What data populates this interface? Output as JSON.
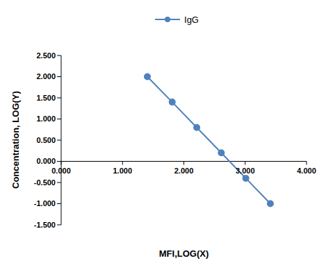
{
  "chart_data": {
    "type": "line",
    "xlabel": "MFI,LOG(X)",
    "ylabel": "Concentration, LOG(Y)",
    "x": [
      1.405,
      1.81,
      2.21,
      2.61,
      3.01,
      3.41
    ],
    "series": [
      {
        "name": "IgG",
        "color": "#4f81bd",
        "marker": "circle",
        "values": [
          2.0,
          1.4,
          0.8,
          0.2,
          -0.4,
          -1.0
        ]
      }
    ],
    "xlim": [
      0,
      4
    ],
    "xticks": [
      {
        "value": 0,
        "label": "0.000"
      },
      {
        "value": 1,
        "label": "1.000"
      },
      {
        "value": 2,
        "label": "2.000"
      },
      {
        "value": 3,
        "label": "3.000"
      },
      {
        "value": 4,
        "label": "4.000"
      }
    ],
    "ylim": [
      -1.5,
      2.5
    ],
    "yticks": [
      {
        "value": -1.5,
        "label": "-1.500"
      },
      {
        "value": -1,
        "label": "-1.000"
      },
      {
        "value": -0.5,
        "label": "-0.500"
      },
      {
        "value": 0,
        "label": "0.000"
      },
      {
        "value": 0.5,
        "label": "0.500"
      },
      {
        "value": 1,
        "label": "1.000"
      },
      {
        "value": 1.5,
        "label": "1.500"
      },
      {
        "value": 2,
        "label": "2.000"
      },
      {
        "value": 2.5,
        "label": "2.500"
      }
    ],
    "legend": "top",
    "grid": false
  }
}
